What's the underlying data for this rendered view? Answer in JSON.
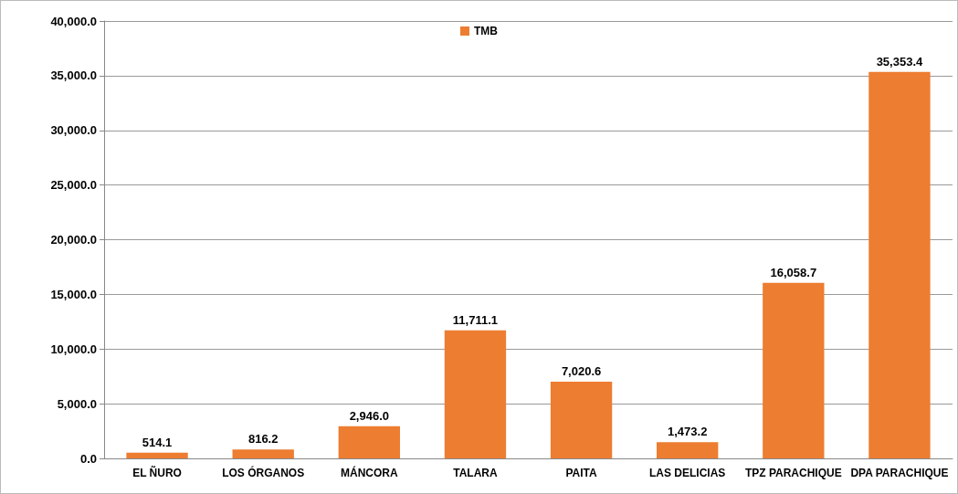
{
  "chart_data": {
    "type": "bar",
    "categories": [
      "EL ÑURO",
      "LOS ÓRGANOS",
      "MÁNCORA",
      "TALARA",
      "PAITA",
      "LAS DELICIAS",
      "TPZ PARACHIQUE",
      "DPA PARACHIQUE"
    ],
    "series": [
      {
        "name": "TMB",
        "color": "#ed7d31",
        "values": [
          514.1,
          816.2,
          2946.0,
          11711.1,
          7020.6,
          1473.2,
          16058.7,
          35353.4
        ],
        "value_labels": [
          "514.1",
          "816.2",
          "2,946.0",
          "11,711.1",
          "7,020.6",
          "1,473.2",
          "16,058.7",
          "35,353.4"
        ]
      }
    ],
    "ylim": [
      0,
      40000
    ],
    "yticks": [
      {
        "value": 0,
        "label": "0.0"
      },
      {
        "value": 5000,
        "label": "5,000.0"
      },
      {
        "value": 10000,
        "label": "10,000.0"
      },
      {
        "value": 15000,
        "label": "15,000.0"
      },
      {
        "value": 20000,
        "label": "20,000.0"
      },
      {
        "value": 25000,
        "label": "25,000.0"
      },
      {
        "value": 30000,
        "label": "30,000.0"
      },
      {
        "value": 35000,
        "label": "35,000.0"
      },
      {
        "value": 40000,
        "label": "40,000.0"
      }
    ],
    "grid": "y",
    "legend": "top"
  }
}
